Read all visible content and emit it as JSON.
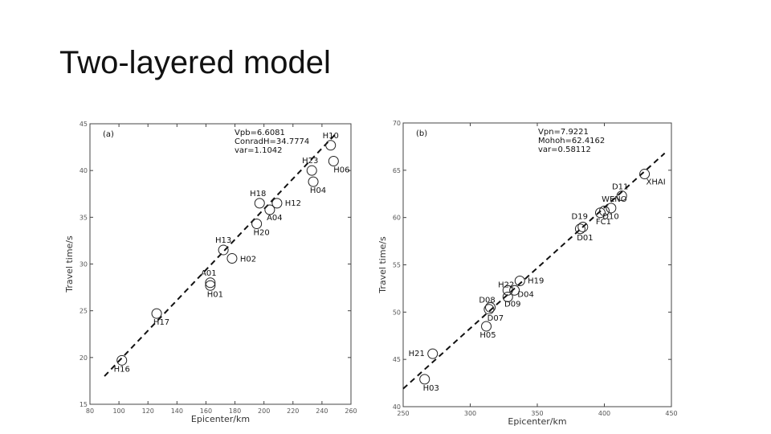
{
  "slide": {
    "title": "Two-layered model"
  },
  "chart_data": [
    {
      "type": "scatter",
      "panel_label": "(a)",
      "xlabel": "Epicenter/km",
      "ylabel": "Travel time/s",
      "xlim": [
        80,
        260
      ],
      "ylim": [
        15,
        45
      ],
      "xticks": [
        80,
        100,
        120,
        140,
        160,
        180,
        200,
        220,
        240,
        260
      ],
      "yticks": [
        15,
        20,
        25,
        30,
        35,
        40,
        45
      ],
      "annotations": [
        "Vpb=6.6081",
        "ConradH=34.7774",
        "var=1.1042"
      ],
      "fit_line": {
        "style": "dashed",
        "x": [
          90,
          250
        ],
        "y": [
          18.0,
          44.0
        ]
      },
      "points": [
        {
          "label": "H16",
          "x": 102,
          "y": 19.7
        },
        {
          "label": "H17",
          "x": 126,
          "y": 24.7
        },
        {
          "label": "A01",
          "x": 163,
          "y": 28.0
        },
        {
          "label": "H01",
          "x": 163,
          "y": 27.7
        },
        {
          "label": "H13",
          "x": 172,
          "y": 31.5
        },
        {
          "label": "H02",
          "x": 178,
          "y": 30.6
        },
        {
          "label": "H18",
          "x": 197,
          "y": 36.5
        },
        {
          "label": "H20",
          "x": 195,
          "y": 34.3
        },
        {
          "label": "A04",
          "x": 204,
          "y": 35.8
        },
        {
          "label": "H12",
          "x": 209,
          "y": 36.5
        },
        {
          "label": "H23",
          "x": 233,
          "y": 40.0
        },
        {
          "label": "H04",
          "x": 234,
          "y": 38.8
        },
        {
          "label": "H10",
          "x": 246,
          "y": 42.7
        },
        {
          "label": "H06",
          "x": 248,
          "y": 41.0
        }
      ]
    },
    {
      "type": "scatter",
      "panel_label": "(b)",
      "xlabel": "Epicenter/km",
      "ylabel": "Travel time/s",
      "xlim": [
        250,
        450
      ],
      "ylim": [
        40,
        70
      ],
      "xticks": [
        250,
        300,
        350,
        400,
        450
      ],
      "yticks": [
        40,
        45,
        50,
        55,
        60,
        65,
        70
      ],
      "annotations": [
        "Vpn=7.9221",
        "Mohoh=62.4162",
        "var=0.58112"
      ],
      "fit_line": {
        "style": "dashed",
        "x": [
          250,
          445
        ],
        "y": [
          41.9,
          66.8
        ]
      },
      "points": [
        {
          "label": "H03",
          "x": 266,
          "y": 42.9
        },
        {
          "label": "H21",
          "x": 272,
          "y": 45.6
        },
        {
          "label": "H05",
          "x": 312,
          "y": 48.5
        },
        {
          "label": "D07",
          "x": 314,
          "y": 50.3
        },
        {
          "label": "D08",
          "x": 315,
          "y": 50.5
        },
        {
          "label": "D09",
          "x": 328,
          "y": 51.6
        },
        {
          "label": "D04",
          "x": 333,
          "y": 52.3
        },
        {
          "label": "H22",
          "x": 328,
          "y": 52.3
        },
        {
          "label": "H19",
          "x": 337,
          "y": 53.3
        },
        {
          "label": "D01",
          "x": 382,
          "y": 58.8
        },
        {
          "label": "D19",
          "x": 384,
          "y": 59.0
        },
        {
          "label": "FC1",
          "x": 397,
          "y": 60.5
        },
        {
          "label": "D10",
          "x": 400,
          "y": 60.7
        },
        {
          "label": "WENO",
          "x": 405,
          "y": 61.0
        },
        {
          "label": "D11",
          "x": 413,
          "y": 62.3
        },
        {
          "label": "XHAI",
          "x": 430,
          "y": 64.6
        }
      ]
    }
  ]
}
